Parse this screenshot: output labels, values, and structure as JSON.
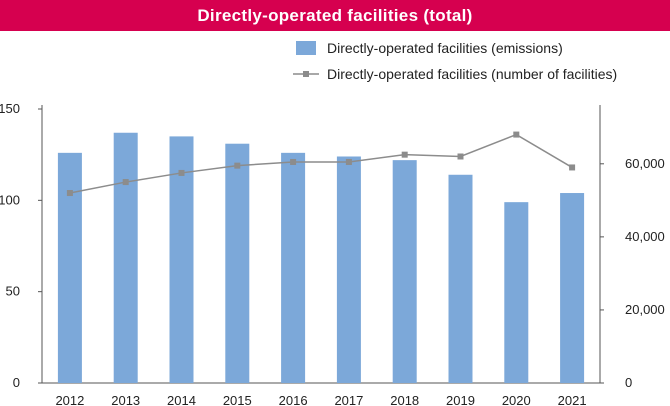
{
  "title": "Directly-operated facilities (total)",
  "colors": {
    "title_bg": "#d6004f",
    "bar": "#7ca8d9",
    "line": "#8c8c8c",
    "axis": "#555555"
  },
  "chart_data": {
    "type": "bar",
    "title": "Directly-operated facilities (total)",
    "categories": [
      "2012",
      "2013",
      "2014",
      "2015",
      "2016",
      "2017",
      "2018",
      "2019",
      "2020",
      "2021"
    ],
    "series": [
      {
        "name": "Directly-operated facilities (emissions)",
        "type": "bar",
        "axis": "left",
        "values": [
          126,
          137,
          135,
          131,
          126,
          124,
          122,
          114,
          99,
          104
        ]
      },
      {
        "name": "Directly-operated facilities (number of facilities)",
        "type": "line",
        "axis": "right",
        "values": [
          52000,
          55000,
          57500,
          59500,
          60500,
          60500,
          62500,
          62000,
          68000,
          59000
        ]
      }
    ],
    "y_left": {
      "min": 0,
      "max": 150,
      "ticks": [
        "0",
        "50",
        "100",
        "150"
      ],
      "tick_values": [
        0,
        50,
        100,
        150
      ]
    },
    "y_right": {
      "min": 0,
      "max": 75000,
      "ticks": [
        "0",
        "20,000",
        "40,000",
        "60,000"
      ],
      "tick_values": [
        0,
        20000,
        40000,
        60000
      ]
    },
    "legend_position": "top-right",
    "grid": false
  }
}
